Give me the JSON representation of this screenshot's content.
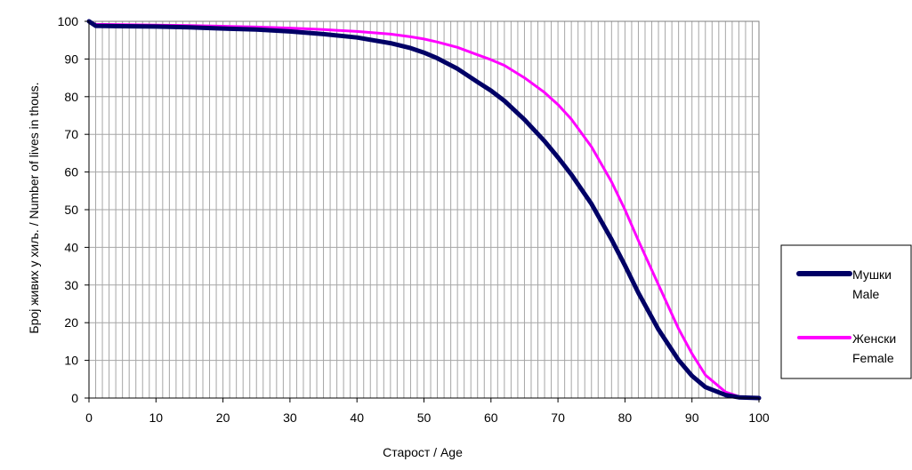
{
  "chart_data": {
    "type": "line",
    "xlabel": "Старост / Age",
    "ylabel": "Број живих у хиљ. / Number of lives in thous.",
    "xlim": [
      0,
      100
    ],
    "ylim": [
      0,
      100
    ],
    "xticks": [
      "0",
      "10",
      "20",
      "30",
      "40",
      "50",
      "60",
      "70",
      "80",
      "90",
      "100"
    ],
    "yticks": [
      "0",
      "10",
      "20",
      "30",
      "40",
      "50",
      "60",
      "70",
      "80",
      "90",
      "100"
    ],
    "grid": "vertical lines every 1 year, horizontal lines every 10",
    "legend_position": "right",
    "plot_background": "#ffffff",
    "grid_color": "#a6a6a6",
    "x": [
      0,
      1,
      5,
      10,
      15,
      20,
      25,
      30,
      35,
      40,
      45,
      48,
      50,
      52,
      55,
      58,
      60,
      62,
      65,
      68,
      70,
      72,
      75,
      78,
      80,
      82,
      85,
      88,
      90,
      92,
      95,
      97,
      100
    ],
    "series": [
      {
        "name_line1": "Мушки",
        "name_line2": "Male",
        "color": "#000066",
        "values": [
          100,
          98.8,
          98.7,
          98.6,
          98.4,
          98.1,
          97.8,
          97.3,
          96.6,
          95.7,
          94.2,
          92.9,
          91.7,
          90.2,
          87.4,
          83.9,
          81.6,
          78.9,
          73.9,
          68.2,
          63.9,
          59.3,
          51.5,
          42.1,
          35.2,
          27.9,
          18.2,
          10.1,
          5.9,
          2.9,
          0.8,
          0.2,
          0.0
        ]
      },
      {
        "name_line1": "Женски",
        "name_line2": "Female",
        "color": "#ff00ff",
        "values": [
          100,
          99.2,
          99.1,
          99.0,
          98.9,
          98.7,
          98.5,
          98.2,
          97.8,
          97.3,
          96.6,
          95.9,
          95.3,
          94.5,
          93.1,
          91.1,
          89.8,
          88.3,
          85.0,
          81.1,
          77.9,
          74.0,
          66.7,
          57.4,
          50.0,
          41.8,
          30.1,
          18.4,
          11.8,
          6.1,
          1.6,
          0.4,
          0.0
        ]
      }
    ]
  }
}
